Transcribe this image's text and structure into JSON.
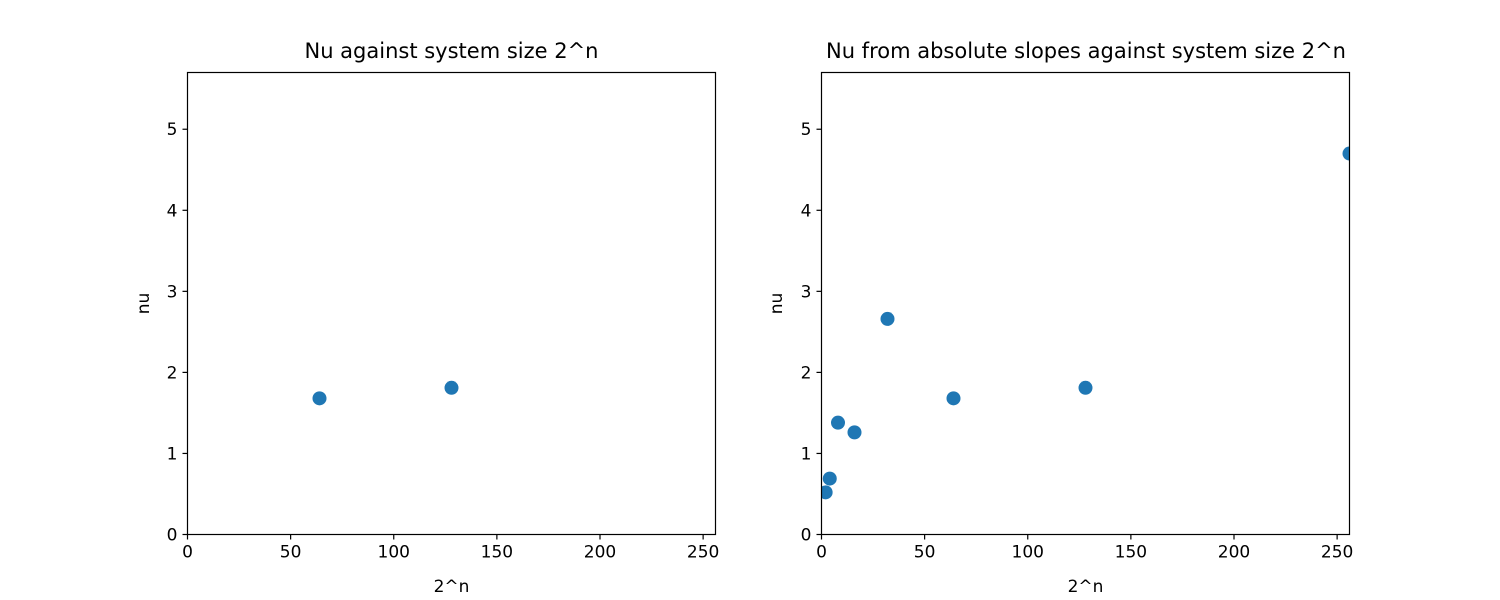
{
  "colors": {
    "marker": "#1f77b4",
    "axis": "#000000",
    "background": "#ffffff"
  },
  "chart_data": [
    {
      "type": "scatter",
      "title": "Nu against system size 2^n",
      "xlabel": "2^n",
      "ylabel": "nu",
      "xlim": [
        0,
        256
      ],
      "ylim": [
        0,
        5.7
      ],
      "xticks": [
        0,
        50,
        100,
        150,
        200,
        250
      ],
      "yticks": [
        0,
        1,
        2,
        3,
        4,
        5
      ],
      "grid": false,
      "series": [
        {
          "x": [
            64,
            128
          ],
          "y": [
            1.68,
            1.81
          ]
        }
      ]
    },
    {
      "type": "scatter",
      "title": "Nu from absolute slopes against system size 2^n",
      "xlabel": "2^n",
      "ylabel": "nu",
      "xlim": [
        0,
        256
      ],
      "ylim": [
        0,
        5.7
      ],
      "xticks": [
        0,
        50,
        100,
        150,
        200,
        250
      ],
      "yticks": [
        0,
        1,
        2,
        3,
        4,
        5
      ],
      "grid": false,
      "series": [
        {
          "x": [
            2,
            4,
            8,
            16,
            32,
            64,
            128,
            256
          ],
          "y": [
            0.52,
            0.69,
            1.38,
            1.26,
            2.66,
            1.68,
            1.81,
            4.7
          ]
        }
      ]
    }
  ]
}
